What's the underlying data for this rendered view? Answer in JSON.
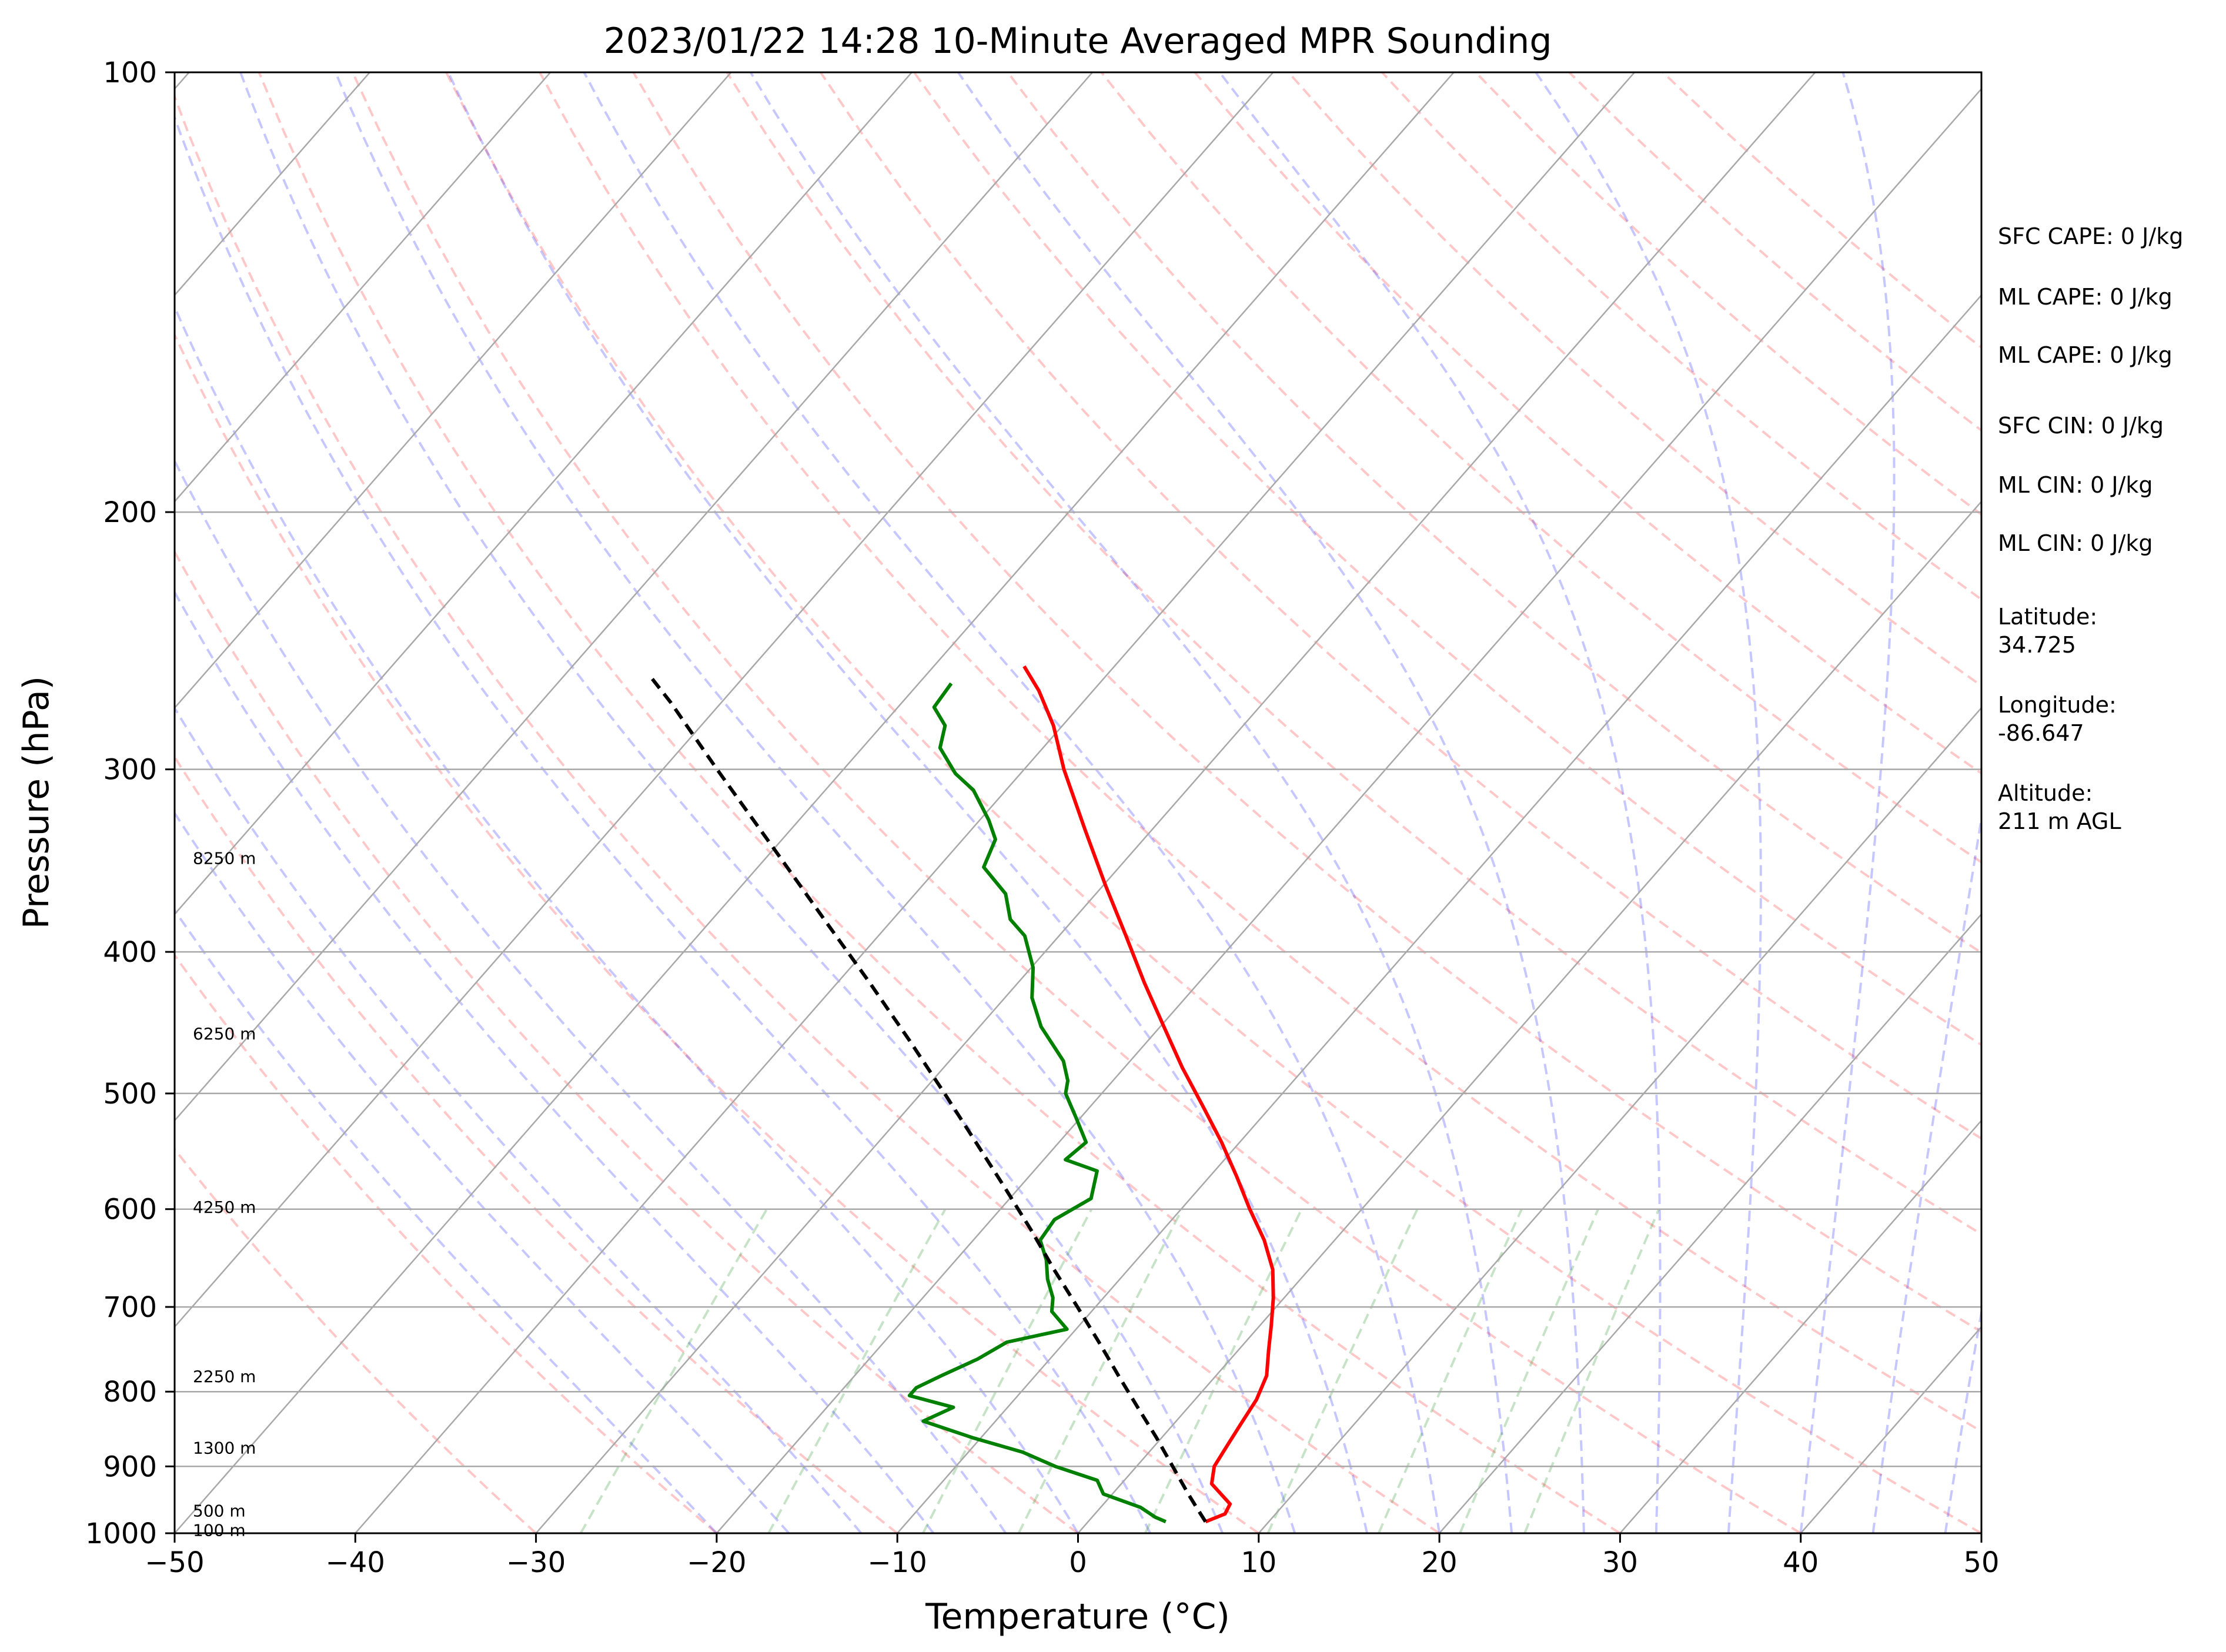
{
  "chart_data": {
    "type": "line",
    "title": "2023/01/22 14:28 10-Minute Averaged MPR Sounding",
    "xlabel": "Temperature (°C)",
    "ylabel": "Pressure (hPa)",
    "xlim": [
      -50,
      50
    ],
    "ylim": [
      1000,
      100
    ],
    "y_scale": "log",
    "skew_t": true,
    "grid": true,
    "x_ticks": [
      -50,
      -40,
      -30,
      -20,
      -10,
      0,
      10,
      20,
      30,
      40,
      50
    ],
    "x_tick_labels": [
      "−50",
      "−40",
      "−30",
      "−20",
      "−10",
      "0",
      "10",
      "20",
      "30",
      "40",
      "50"
    ],
    "y_ticks": [
      100,
      200,
      300,
      400,
      500,
      600,
      700,
      800,
      900,
      1000
    ],
    "y_tick_labels": [
      "100",
      "200",
      "300",
      "400",
      "500",
      "600",
      "700",
      "800",
      "900",
      "1000"
    ],
    "height_labels": [
      {
        "text": "8250 m",
        "p": 345
      },
      {
        "text": "6250 m",
        "p": 455
      },
      {
        "text": "4250 m",
        "p": 598
      },
      {
        "text": "2250 m",
        "p": 781
      },
      {
        "text": "1300 m",
        "p": 874
      },
      {
        "text": "500 m",
        "p": 965
      },
      {
        "text": "100 m",
        "p": 995
      }
    ],
    "series": [
      {
        "color": "#ff0000",
        "p": [
          982,
          970,
          955,
          925,
          900,
          870,
          840,
          810,
          780,
          750,
          720,
          690,
          660,
          630,
          600,
          570,
          540,
          510,
          480,
          450,
          420,
          390,
          360,
          330,
          300,
          280,
          265,
          255
        ],
        "t": [
          6.5,
          7.2,
          7.0,
          5.0,
          4.3,
          4.0,
          3.7,
          3.4,
          2.8,
          1.7,
          0.6,
          -0.6,
          -2.0,
          -3.9,
          -6.2,
          -8.5,
          -11.0,
          -13.8,
          -16.8,
          -19.8,
          -23.0,
          -26.3,
          -29.9,
          -33.7,
          -37.8,
          -40.5,
          -43.0,
          -45.0
        ]
      },
      {
        "color": "#008000",
        "p": [
          982,
          975,
          960,
          940,
          920,
          900,
          880,
          860,
          838,
          820,
          805,
          795,
          780,
          760,
          740,
          725,
          705,
          690,
          670,
          650,
          630,
          610,
          590,
          565,
          555,
          540,
          520,
          500,
          490,
          475,
          450,
          430,
          410,
          390,
          380,
          365,
          350,
          335,
          325,
          310,
          302,
          290,
          280,
          272,
          262
        ],
        "t": [
          4.3,
          3.5,
          2.2,
          -0.5,
          -1.5,
          -4.5,
          -7.0,
          -10.5,
          -14.0,
          -13.0,
          -16.0,
          -16.0,
          -15.2,
          -14.0,
          -13.2,
          -10.5,
          -12.2,
          -12.8,
          -14.0,
          -15.0,
          -16.3,
          -16.5,
          -15.5,
          -16.5,
          -18.8,
          -18.5,
          -20.2,
          -22.0,
          -22.5,
          -23.7,
          -26.6,
          -28.5,
          -29.9,
          -31.9,
          -33.5,
          -35.0,
          -37.5,
          -38.2,
          -39.5,
          -41.8,
          -43.6,
          -45.7,
          -46.5,
          -48.0,
          -48.2
        ]
      },
      {
        "color": "#000000",
        "dashed": true,
        "p": [
          982,
          960,
          940,
          900,
          860,
          820,
          780,
          740,
          700,
          660,
          620,
          580,
          540,
          500,
          460,
          420,
          380,
          340,
          300,
          270,
          260
        ],
        "t": [
          6.5,
          5.3,
          4.2,
          2.0,
          -0.3,
          -2.8,
          -5.4,
          -8.1,
          -11.0,
          -14.1,
          -17.3,
          -20.8,
          -24.6,
          -28.7,
          -33.2,
          -38.2,
          -43.8,
          -50.0,
          -57.0,
          -62.8,
          -65.0
        ]
      }
    ],
    "parameters": [
      "SFC CAPE: 0 J/kg",
      "ML CAPE: 0 J/kg",
      "ML CAPE: 0 J/kg",
      "SFC CIN: 0 J/kg",
      "ML CIN: 0 J/kg",
      "ML CIN: 0 J/kg"
    ],
    "location": [
      {
        "label": "Latitude:",
        "value": "34.725"
      },
      {
        "label": "Longitude:",
        "value": "-86.647"
      },
      {
        "label": "Altitude:",
        "value": "211 m AGL"
      }
    ]
  }
}
